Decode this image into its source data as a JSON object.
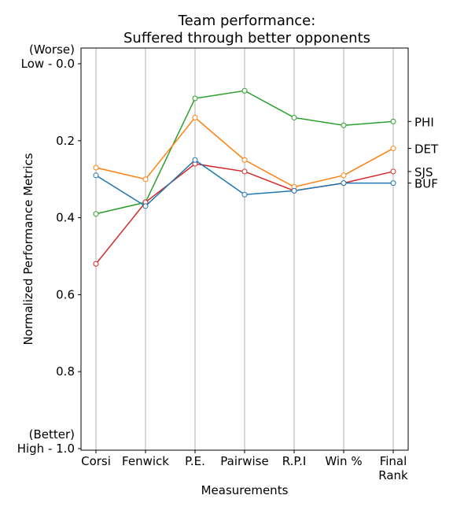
{
  "chart_data": {
    "type": "line",
    "title": [
      "Team performance:",
      "Suffered through better opponents"
    ],
    "xlabel": "Measurements",
    "ylabel": "Normalized Performance Metrics",
    "categories": [
      "Corsi",
      "Fenwick",
      "P.E.",
      "Pairwise",
      "R.P.I",
      "Win %",
      [
        "Final",
        "Rank"
      ]
    ],
    "ylim": [
      0.0,
      1.0
    ],
    "y_inverted": true,
    "y_ticks": [
      {
        "value": 0.0,
        "lines": [
          "(Worse)",
          "Low - 0.0"
        ]
      },
      {
        "value": 0.2,
        "lines": [
          "0.2"
        ]
      },
      {
        "value": 0.4,
        "lines": [
          "0.4"
        ]
      },
      {
        "value": 0.6,
        "lines": [
          "0.6"
        ]
      },
      {
        "value": 0.8,
        "lines": [
          "0.8"
        ]
      },
      {
        "value": 1.0,
        "lines": [
          "(Better)",
          "High - 1.0"
        ]
      }
    ],
    "grid": "x-only",
    "marker": "open-circle",
    "series": [
      {
        "name": "PHI",
        "color": "#2ca02c",
        "values": [
          0.39,
          0.36,
          0.09,
          0.07,
          0.14,
          0.16,
          0.15
        ]
      },
      {
        "name": "DET",
        "color": "#ff7f0e",
        "values": [
          0.27,
          0.3,
          0.14,
          0.25,
          0.32,
          0.29,
          0.22
        ]
      },
      {
        "name": "SJS",
        "color": "#d62728",
        "values": [
          0.52,
          0.36,
          0.26,
          0.28,
          0.33,
          0.31,
          0.28
        ]
      },
      {
        "name": "BUF",
        "color": "#1f77b4",
        "values": [
          0.29,
          0.37,
          0.25,
          0.34,
          0.33,
          0.31,
          0.31
        ]
      }
    ]
  }
}
